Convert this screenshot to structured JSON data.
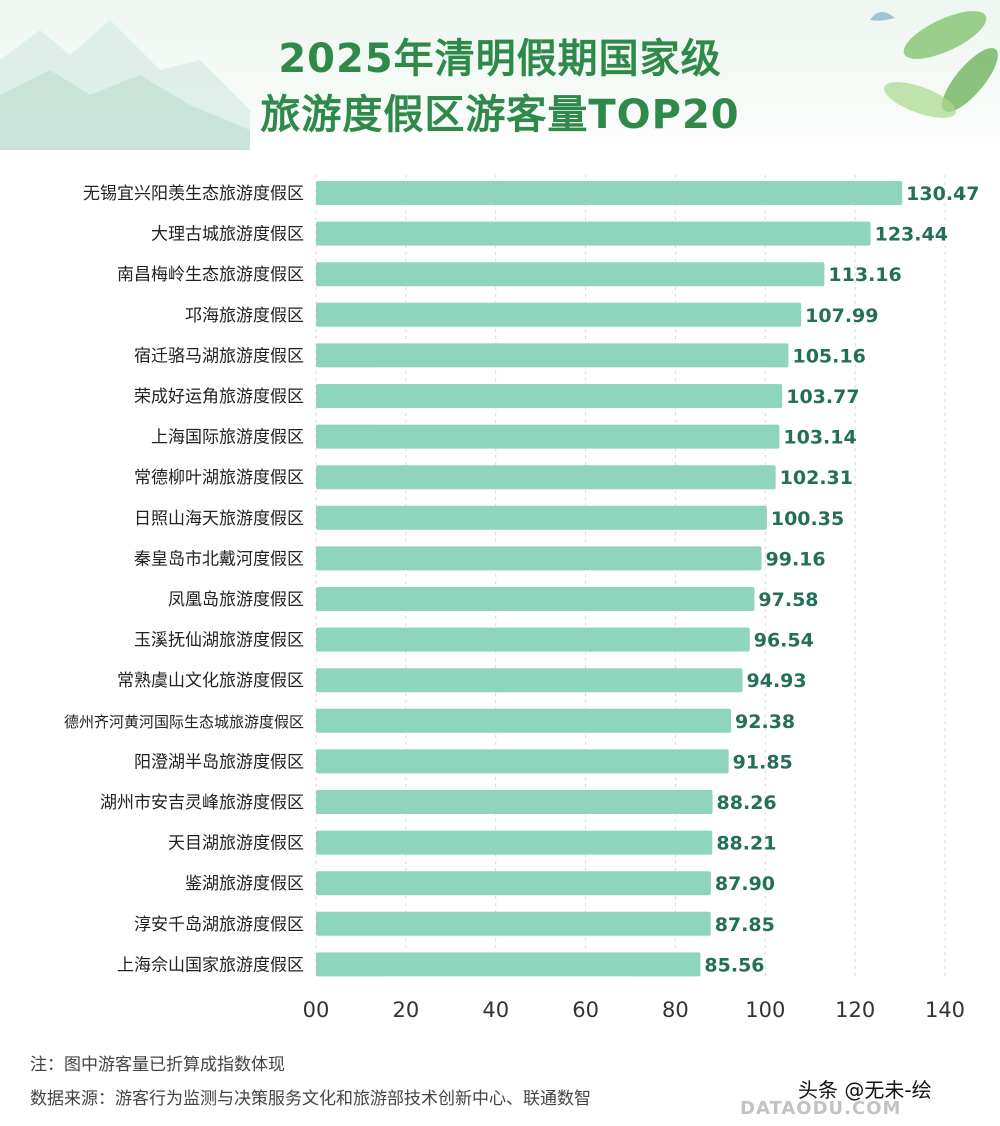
{
  "colors": {
    "bar": "#8fd4bd",
    "title": "#2f8a4a",
    "value": "#236f5a",
    "grid": "#d9d9d9"
  },
  "header": {
    "title_line1": "2025年清明假期国家级",
    "title_line2": "旅游度假区游客量TOP20"
  },
  "chart_data": {
    "type": "bar",
    "orientation": "horizontal",
    "title": "2025年清明假期国家级旅游度假区游客量TOP20",
    "categories": [
      "无锡宜兴阳羡生态旅游度假区",
      "大理古城旅游度假区",
      "南昌梅岭生态旅游度假区",
      "邛海旅游度假区",
      "宿迁骆马湖旅游度假区",
      "荣成好运角旅游度假区",
      "上海国际旅游度假区",
      "常德柳叶湖旅游度假区",
      "日照山海天旅游度假区",
      "秦皇岛市北戴河度假区",
      "凤凰岛旅游度假区",
      "玉溪抚仙湖旅游度假区",
      "常熟虞山文化旅游度假区",
      "德州齐河黄河国际生态城旅游度假区",
      "阳澄湖半岛旅游度假区",
      "湖州市安吉灵峰旅游度假区",
      "天目湖旅游度假区",
      "鉴湖旅游度假区",
      "淳安千岛湖旅游度假区",
      "上海佘山国家旅游度假区"
    ],
    "values": [
      130.47,
      123.44,
      113.16,
      107.99,
      105.16,
      103.77,
      103.14,
      102.31,
      100.35,
      99.16,
      97.58,
      96.54,
      94.93,
      92.38,
      91.85,
      88.26,
      88.21,
      87.9,
      87.85,
      85.56
    ],
    "value_labels": [
      "130.47",
      "123.44",
      "113.16",
      "107.99",
      "105.16",
      "103.77",
      "103.14",
      "102.31",
      "100.35",
      "99.16",
      "97.58",
      "96.54",
      "94.93",
      "92.38",
      "91.85",
      "88.26",
      "88.21",
      "87.90",
      "87.85",
      "85.56"
    ],
    "xlim": [
      0,
      140
    ],
    "ticks": [
      0,
      20,
      40,
      60,
      80,
      100,
      120,
      140
    ],
    "tick_labels": [
      "00",
      "20",
      "40",
      "60",
      "80",
      "100",
      "120",
      "140"
    ],
    "grid": true
  },
  "footer": {
    "note": "注：图中游客量已折算成指数体现",
    "source": "数据来源：游客行为监测与决策服务文化和旅游部技术创新中心、联通数智",
    "watermark": "头条 @无未-绘",
    "watermark2": "DATAODU.COM"
  }
}
